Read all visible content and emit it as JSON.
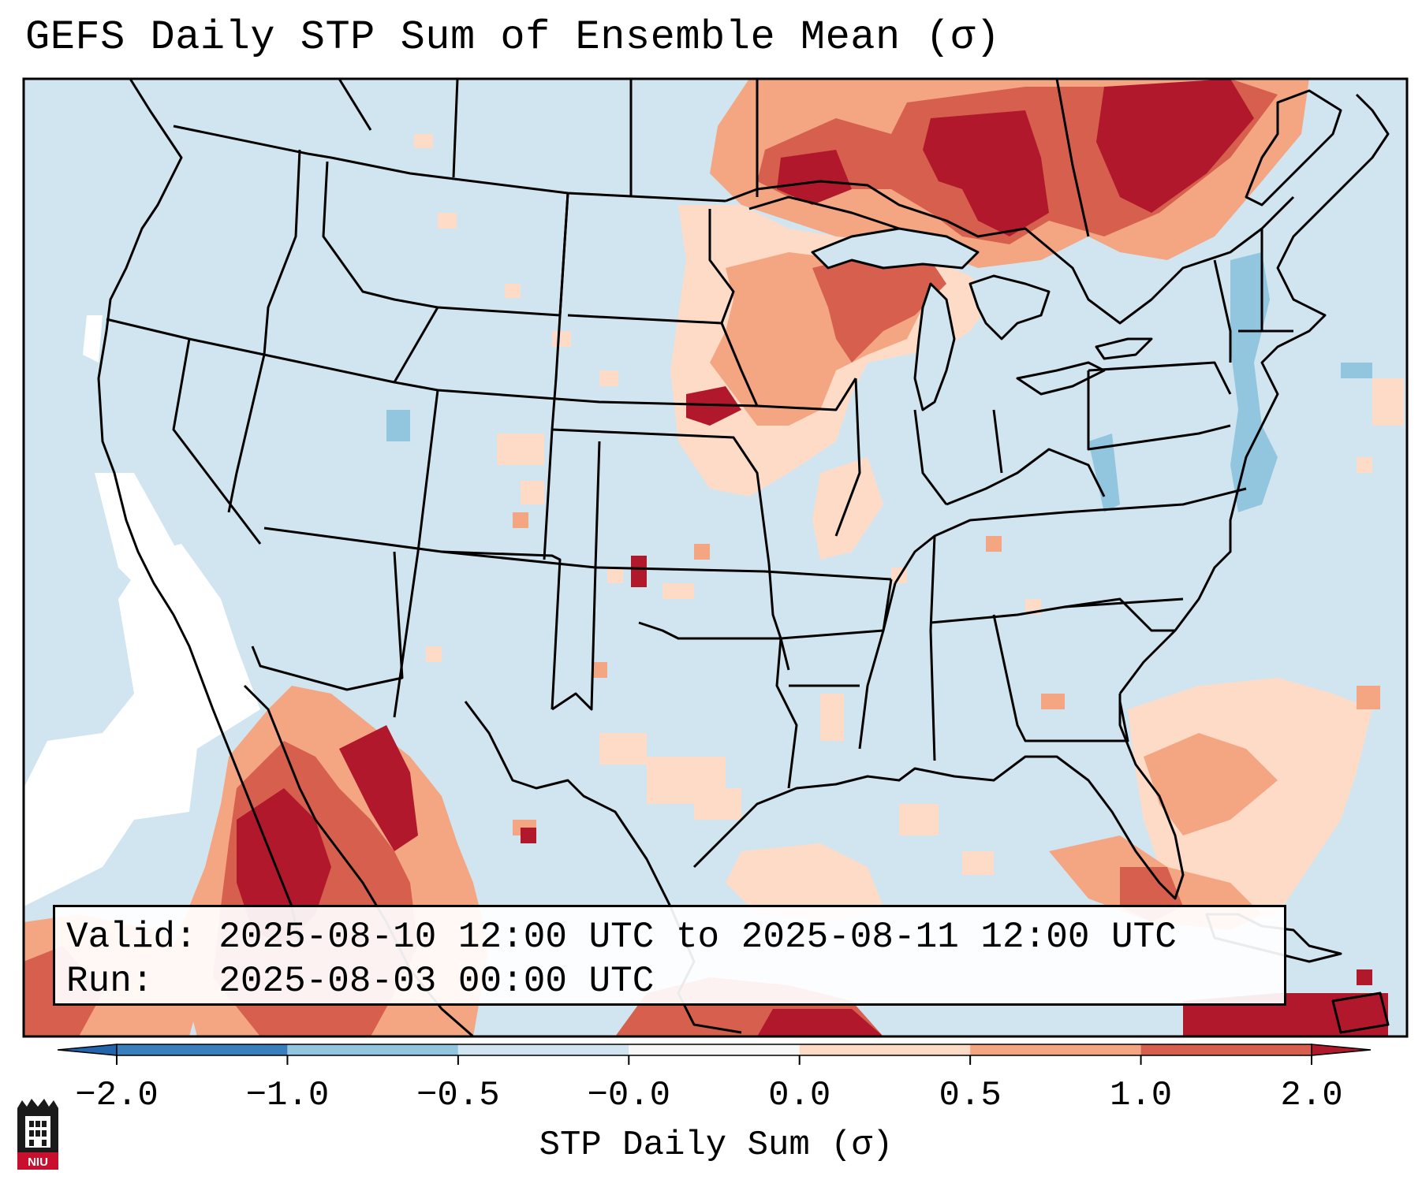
{
  "title": "GEFS Daily STP Sum of Ensemble Mean (σ)",
  "info": {
    "valid_label": "Valid:",
    "valid_value": "2025-08-10 12:00 UTC to 2025-08-11 12:00 UTC",
    "run_label": "Run:",
    "run_value": "2025-08-03 00:00 UTC"
  },
  "colorbar": {
    "label": "STP Daily Sum (σ)",
    "ticks": [
      "−2.0",
      "−1.0",
      "−0.5",
      "−0.0",
      "0.0",
      "0.5",
      "1.0",
      "2.0"
    ],
    "bin_colors": [
      "#3a7fbd",
      "#92c5de",
      "#d1e5f0",
      "#f7f7f7",
      "#fddbc7",
      "#f4a582",
      "#d6604d",
      "#b2182b"
    ],
    "extend_low_color": "#2166ac",
    "extend_high_color": "#b2182b"
  },
  "map": {
    "background_color": "#d1e5f0",
    "land_border_color": "#000000",
    "region": "CONUS",
    "hotspots": [
      {
        "area": "Ontario / Quebec",
        "value": "high"
      },
      {
        "area": "Upper Midwest / Great Lakes",
        "value": "moderate"
      },
      {
        "area": "Western Mexico",
        "value": "high"
      },
      {
        "area": "Florida / Southeast Atlantic",
        "value": "moderate"
      }
    ]
  },
  "logo": {
    "text": "NIU",
    "name": "niu-logo"
  }
}
